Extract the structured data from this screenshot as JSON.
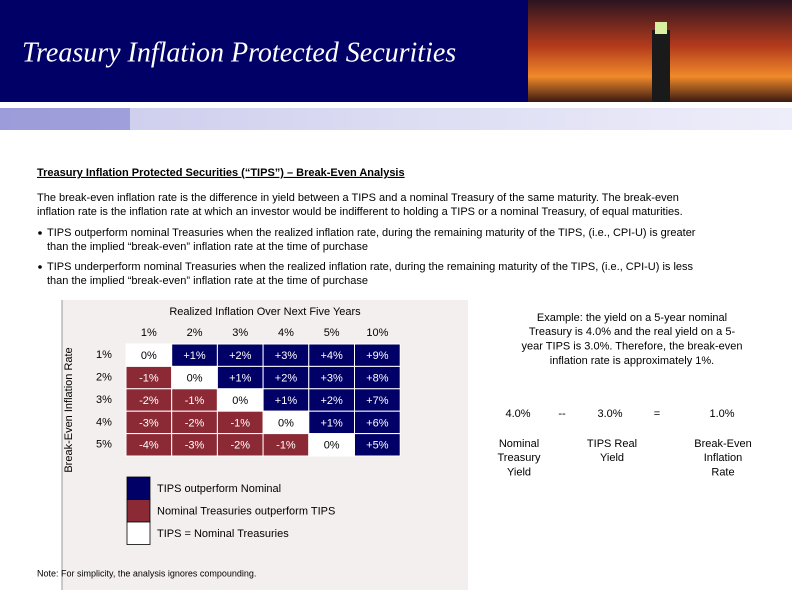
{
  "header": {
    "title": "Treasury Inflation Protected Securities"
  },
  "section": {
    "title": "Treasury Inflation Protected Securities (“TIPS”) – Break-Even Analysis",
    "paragraph": [
      "The break-even inflation rate is the difference in yield between a TIPS and a nominal Treasury of the same maturity.  The break-even",
      "inflation rate is the inflation rate at which an investor would be indifferent to holding a TIPS or a nominal Treasury, of equal maturities."
    ],
    "bullets": [
      [
        "TIPS outperform nominal Treasuries when the realized inflation rate, during the remaining maturity of the TIPS, (i.e., CPI-U) is greater",
        "than  the implied “break-even” inflation rate at the time of purchase"
      ],
      [
        "TIPS underperform nominal Treasuries when the realized inflation rate, during the remaining maturity of the TIPS, (i.e., CPI-U) is less",
        "than the implied “break-even” inflation rate at the time of purchase"
      ]
    ]
  },
  "table": {
    "column_title": "Realized Inflation Over Next Five Years",
    "row_title": "Break-Even Inflation Rate",
    "columns": [
      "1%",
      "2%",
      "3%",
      "4%",
      "5%",
      "10%"
    ],
    "rows": [
      {
        "label": "1%",
        "cells": [
          "0%",
          "+1%",
          "+2%",
          "+3%",
          "+4%",
          "+9%"
        ]
      },
      {
        "label": "2%",
        "cells": [
          "-1%",
          "0%",
          "+1%",
          "+2%",
          "+3%",
          "+8%"
        ]
      },
      {
        "label": "3%",
        "cells": [
          "-2%",
          "-1%",
          "0%",
          "+1%",
          "+2%",
          "+7%"
        ]
      },
      {
        "label": "4%",
        "cells": [
          "-3%",
          "-2%",
          "-1%",
          "0%",
          "+1%",
          "+6%"
        ]
      },
      {
        "label": "5%",
        "cells": [
          "-4%",
          "-3%",
          "-2%",
          "-1%",
          "0%",
          "+5%"
        ]
      }
    ]
  },
  "legend": [
    {
      "label": "TIPS outperform Nominal",
      "color": "#000066"
    },
    {
      "label": "Nominal Treasuries outperform TIPS",
      "color": "#8b2a35"
    },
    {
      "label": "TIPS = Nominal Treasuries",
      "color": "#ffffff"
    }
  ],
  "note": "Note: For simplicity, the analysis ignores compounding.",
  "example": {
    "text": [
      "Example: the yield on a 5-year nominal",
      "Treasury is 4.0% and the real yield on a 5-",
      "year TIPS is 3.0%.  Therefore, the break-even",
      "inflation rate is approximately 1%."
    ],
    "equation": [
      "4.0%",
      "--",
      "3.0%",
      "=",
      "1.0%"
    ],
    "labels": [
      [
        "Nominal",
        "Treasury",
        "Yield"
      ],
      [
        "TIPS Real",
        "Yield"
      ],
      [
        "Break-Even",
        "Inflation",
        "Rate"
      ]
    ]
  }
}
